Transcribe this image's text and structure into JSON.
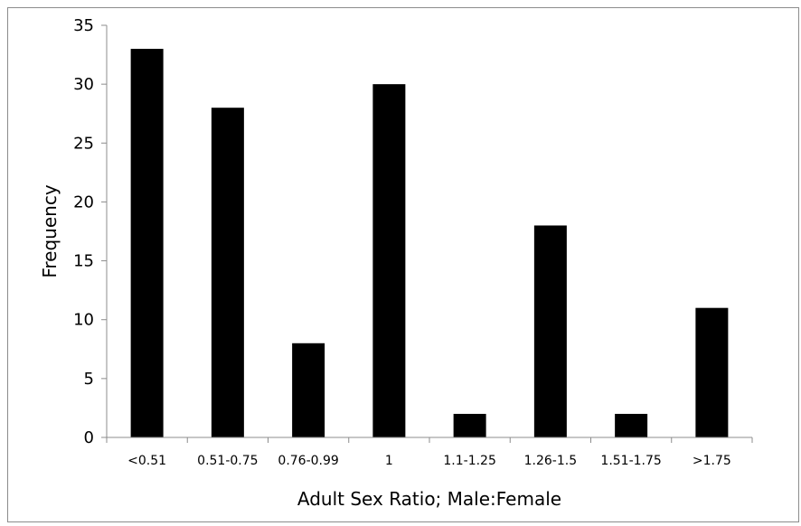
{
  "chart_data": {
    "type": "bar",
    "title": "",
    "xlabel": "Adult Sex Ratio; Male:Female",
    "ylabel": "Frequency",
    "categories": [
      "<0.51",
      "0.51-0.75",
      "0.76-0.99",
      "1",
      "1.1-1.25",
      "1.26-1.5",
      "1.51-1.75",
      ">1.75"
    ],
    "values": [
      33,
      28,
      8,
      30,
      2,
      18,
      2,
      11
    ],
    "ylim": [
      0,
      35
    ],
    "yticks": [
      0,
      5,
      10,
      15,
      20,
      25,
      30,
      35
    ],
    "grid": false,
    "legend": "none",
    "bar_color": "#000000"
  }
}
